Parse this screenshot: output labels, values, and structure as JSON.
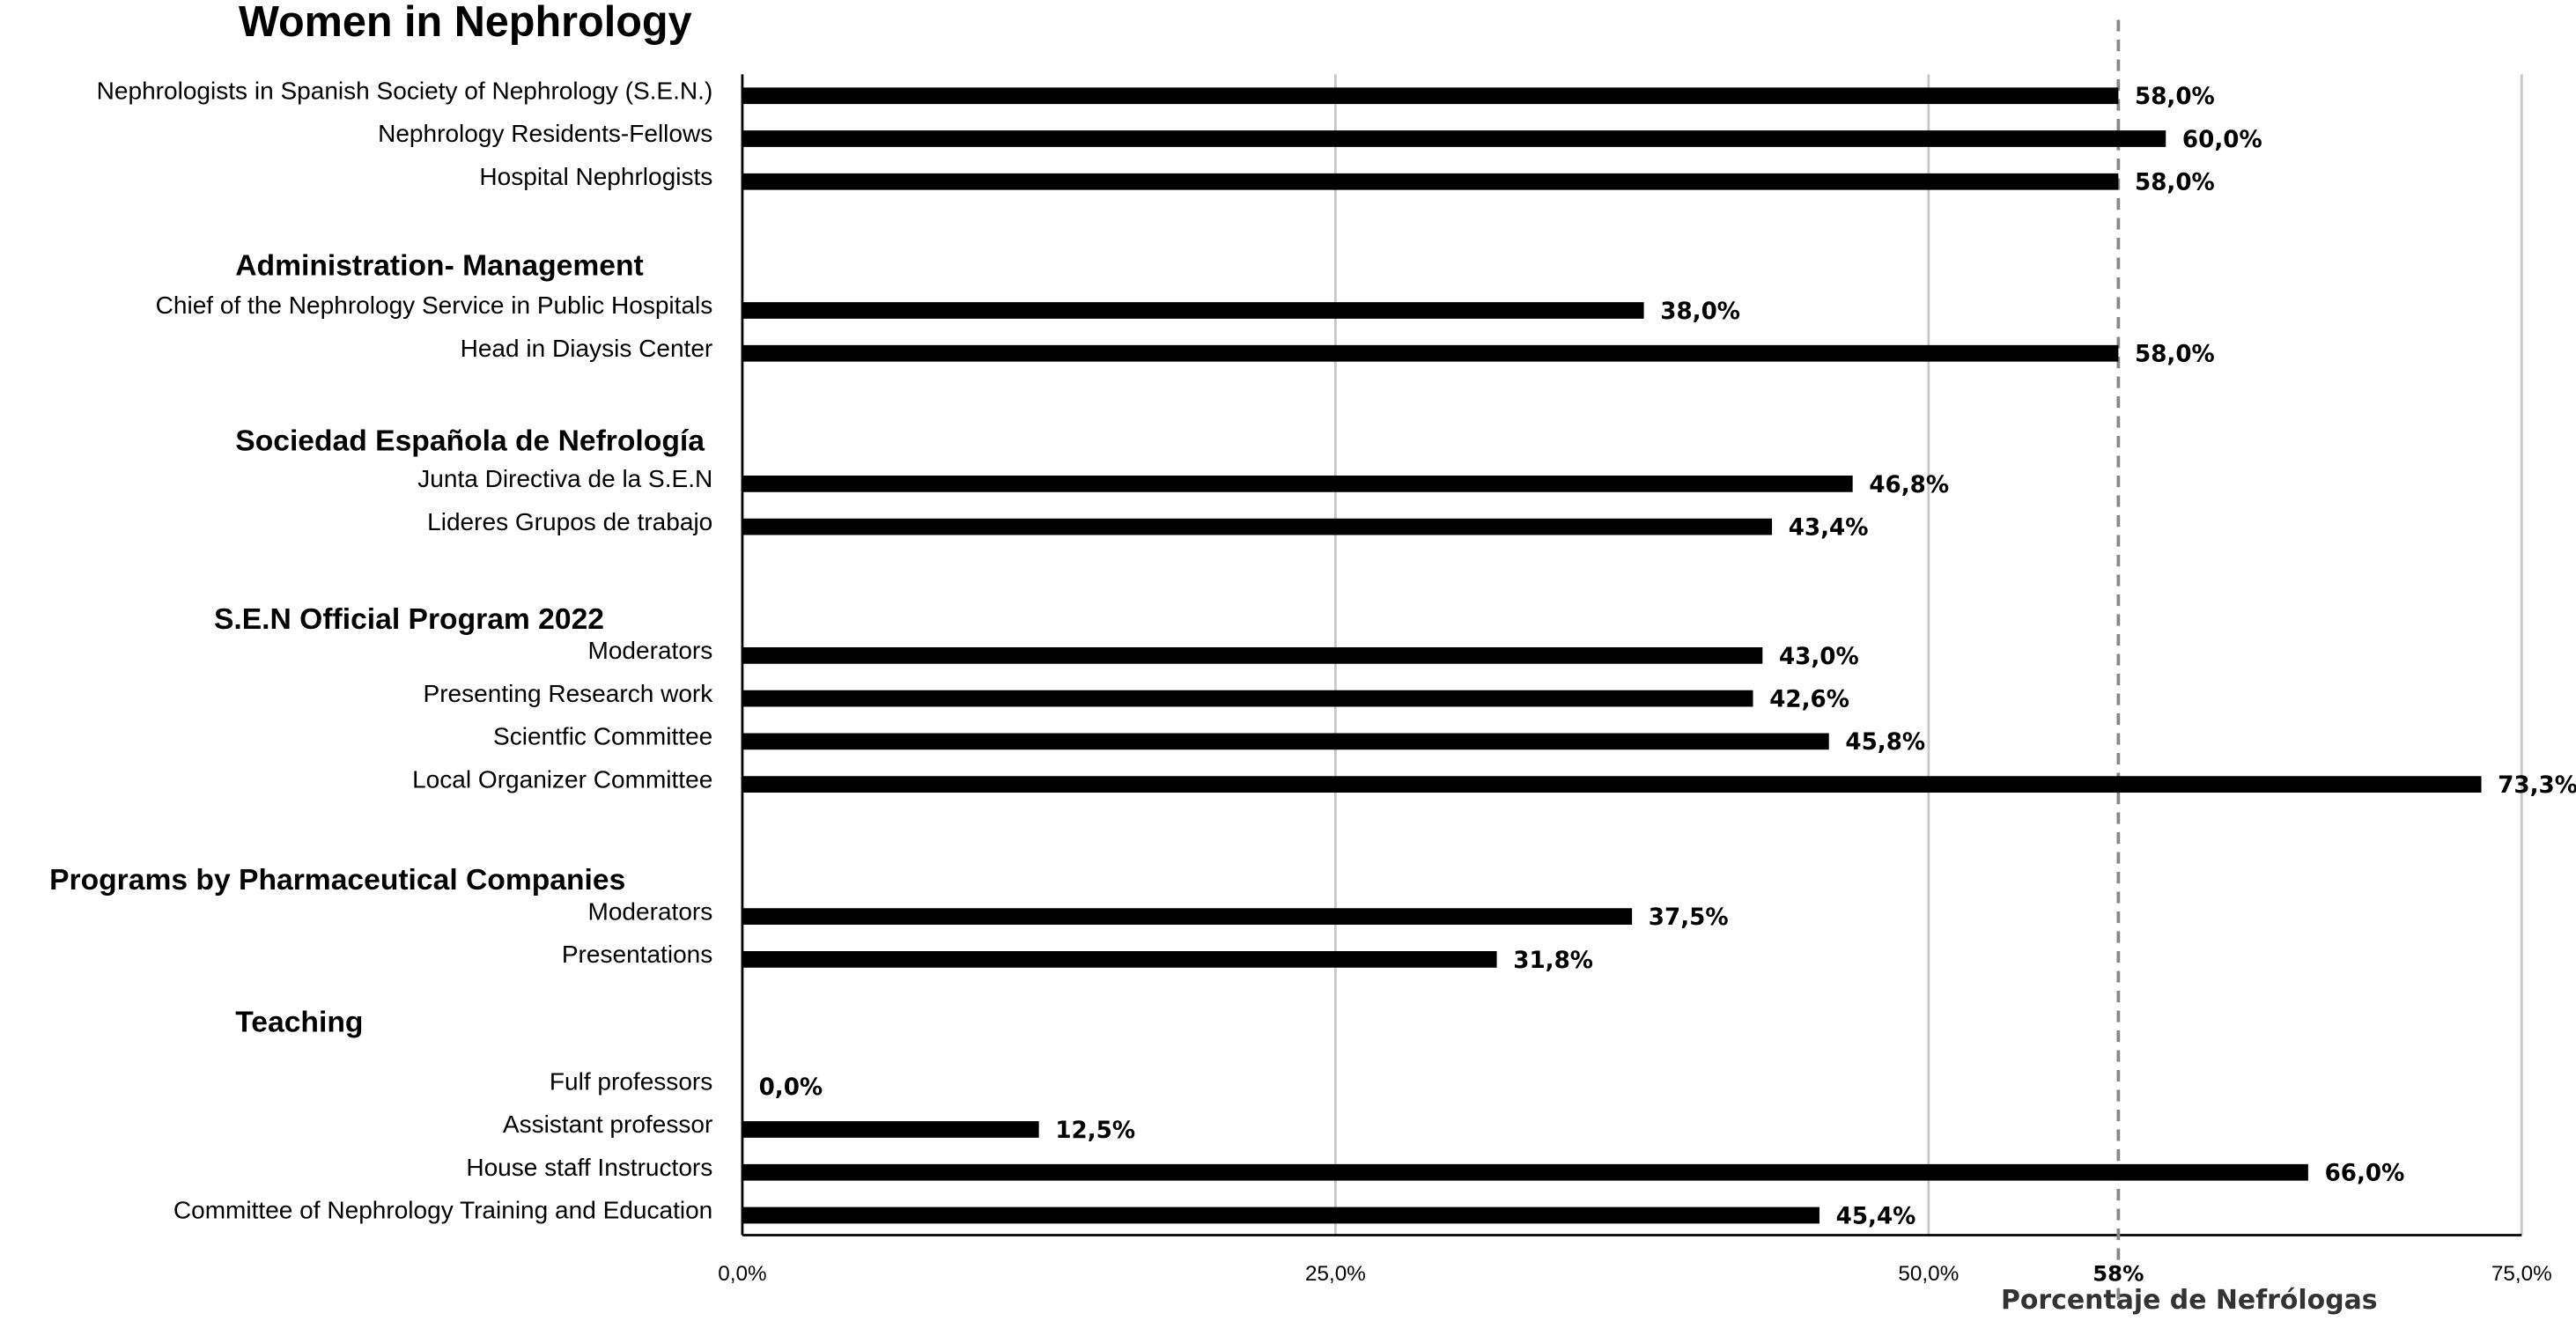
{
  "chart_data": {
    "type": "bar",
    "orientation": "horizontal",
    "title": "Women in Nephrology",
    "x_label": "Porcentaje de Nefrólogas",
    "color": "#000000",
    "grid": true,
    "xlim": [
      0,
      75
    ],
    "xticks": [
      {
        "value": 0,
        "label": "0,0%"
      },
      {
        "value": 25,
        "label": "25,0%"
      },
      {
        "value": 50,
        "label": "50,0%"
      },
      {
        "value": 75,
        "label": "75,0%"
      }
    ],
    "reference_line": {
      "value": 58,
      "label": "58%"
    },
    "groups": [
      {
        "categories": [
          "Nephrologists in Spanish Society of Nephrology (S.E.N.)",
          "Nephrology Residents-Fellows",
          "Hospital Nephrlogists"
        ],
        "values": [
          58,
          60,
          58
        ],
        "value_labels": [
          "58,0%",
          "60,0%",
          "58,0%"
        ]
      },
      {
        "name": "Administration- Management",
        "categories": [
          "Chief of the Nephrology Service in Public Hospitals",
          "Head in Diaysis Center"
        ],
        "values": [
          38,
          58
        ],
        "value_labels": [
          "38,0%",
          "58,0%"
        ]
      },
      {
        "name": "Sociedad Española de Nefrología",
        "categories": [
          "Junta Directiva de la S.E.N",
          "Lideres Grupos de trabajo"
        ],
        "values": [
          46.8,
          43.4
        ],
        "value_labels": [
          "46,8%",
          "43,4%"
        ]
      },
      {
        "name": "S.E.N Official Program 2022",
        "categories": [
          "Moderators",
          "Presenting  Research work",
          "Scientfic Committee",
          "Local Organizer Committee"
        ],
        "values": [
          43,
          42.6,
          45.8,
          73.3
        ],
        "value_labels": [
          "43,0%",
          "42,6%",
          "45,8%",
          "73,3%"
        ]
      },
      {
        "name": "Programs by Pharmaceutical Companies",
        "categories": [
          "Moderators",
          "Presentations"
        ],
        "values": [
          37.5,
          31.8
        ],
        "value_labels": [
          "37,5%",
          "31,8%"
        ]
      },
      {
        "name": "Teaching",
        "categories": [
          "Fulf professors",
          "Assistant professor",
          "House staff Instructors",
          "Committee of Nephrology Training and Education"
        ],
        "values": [
          0,
          12.5,
          66,
          45.4
        ],
        "value_labels": [
          "0,0%",
          "12,5%",
          "66,0%",
          "45,4%"
        ]
      }
    ]
  }
}
